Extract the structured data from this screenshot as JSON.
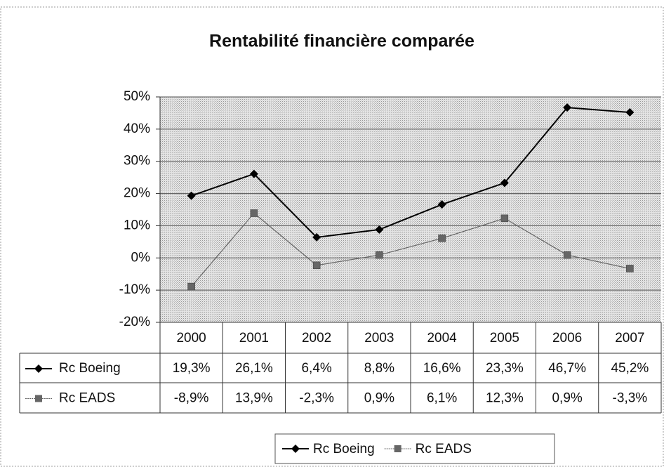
{
  "chart_data": {
    "type": "line",
    "title": "Rentabilité financière comparée",
    "categories": [
      "2000",
      "2001",
      "2002",
      "2003",
      "2004",
      "2005",
      "2006",
      "2007"
    ],
    "series": [
      {
        "name": "Rc Boeing",
        "color": "#000000",
        "marker": "diamond",
        "values": [
          19.3,
          26.1,
          6.4,
          8.8,
          16.6,
          23.3,
          46.7,
          45.2
        ],
        "value_labels": [
          "19,3%",
          "26,1%",
          "6,4%",
          "8,8%",
          "16,6%",
          "23,3%",
          "46,7%",
          "45,2%"
        ]
      },
      {
        "name": "Rc EADS",
        "color": "#666666",
        "marker": "square",
        "values": [
          -8.9,
          13.9,
          -2.3,
          0.9,
          6.1,
          12.3,
          0.9,
          -3.3
        ],
        "value_labels": [
          "-8,9%",
          "13,9%",
          "-2,3%",
          "0,9%",
          "6,1%",
          "12,3%",
          "0,9%",
          "-3,3%"
        ]
      }
    ],
    "ylim": [
      -20,
      50
    ],
    "yticks": [
      {
        "value": -20,
        "label": "-20%"
      },
      {
        "value": -10,
        "label": "-10%"
      },
      {
        "value": 0,
        "label": "0%"
      },
      {
        "value": 10,
        "label": "10%"
      },
      {
        "value": 20,
        "label": "20%"
      },
      {
        "value": 30,
        "label": "30%"
      },
      {
        "value": 40,
        "label": "40%"
      },
      {
        "value": 50,
        "label": "50%"
      }
    ],
    "grid": true,
    "legend": "bottom"
  }
}
